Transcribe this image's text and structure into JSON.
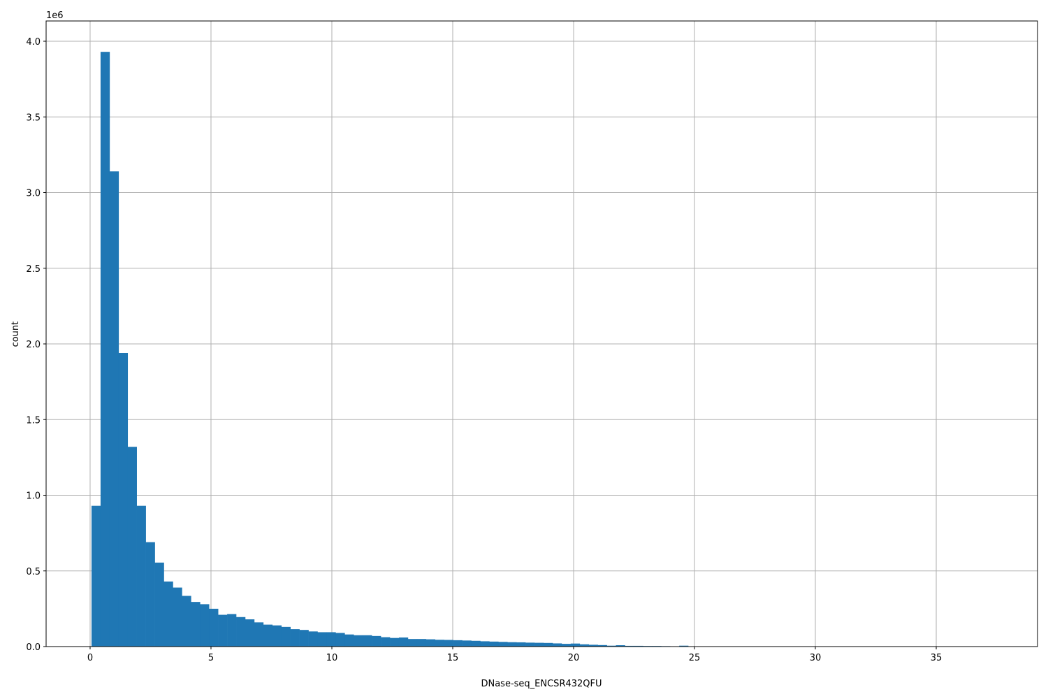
{
  "chart_data": {
    "type": "bar",
    "title": "",
    "xlabel": "DNase-seq_ENCSR432QFU",
    "ylabel": "count",
    "y_offset_label": "1e6",
    "xlim": [
      -1.82,
      39.19
    ],
    "ylim": [
      0,
      4134000
    ],
    "grid": true,
    "bar_color": "#1f77b4",
    "bin_start": 0.058,
    "bin_width": 0.374,
    "x_ticks": [
      "0",
      "5",
      "10",
      "15",
      "20",
      "25",
      "30",
      "35"
    ],
    "x_tick_values": [
      0,
      5,
      10,
      15,
      20,
      25,
      30,
      35
    ],
    "y_ticks": [
      "0.0",
      "0.5",
      "1.0",
      "1.5",
      "2.0",
      "2.5",
      "3.0",
      "3.5",
      "4.0"
    ],
    "y_tick_values": [
      0,
      500000,
      1000000,
      1500000,
      2000000,
      2500000,
      3000000,
      3500000,
      4000000
    ],
    "values": [
      930000,
      3930000,
      3140000,
      1940000,
      1320000,
      930000,
      690000,
      555000,
      430000,
      390000,
      335000,
      295000,
      280000,
      250000,
      210000,
      215000,
      195000,
      180000,
      160000,
      145000,
      140000,
      130000,
      115000,
      110000,
      100000,
      95000,
      95000,
      90000,
      80000,
      75000,
      75000,
      70000,
      62000,
      57000,
      60000,
      50000,
      50000,
      48000,
      45000,
      44000,
      42000,
      40000,
      38000,
      35000,
      33000,
      31000,
      29000,
      28000,
      26000,
      25000,
      24000,
      21000,
      18000,
      20000,
      15000,
      12000,
      10000,
      6000,
      9000,
      5000,
      5000,
      4000,
      4000,
      3000,
      2000,
      6000,
      2000,
      1000,
      800,
      600,
      500,
      400,
      300,
      300,
      200,
      200,
      150,
      150,
      100,
      100,
      100,
      80,
      80,
      60,
      60,
      50,
      50,
      40,
      40,
      30,
      30,
      20,
      20,
      20,
      10,
      10,
      10,
      10,
      10,
      10
    ]
  }
}
